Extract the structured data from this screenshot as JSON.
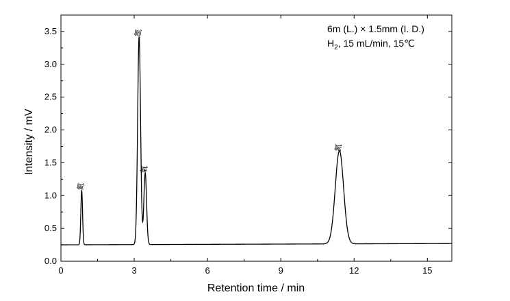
{
  "chart_data": {
    "type": "line",
    "xlabel": "Retention time / min",
    "ylabel": "Intensity / mV",
    "xlim": [
      0,
      16
    ],
    "ylim": [
      0,
      3.75
    ],
    "xticks": [
      0,
      3,
      6,
      9,
      12,
      15
    ],
    "xtick_labels": [
      "0",
      "3",
      "6",
      "9",
      "12",
      "15"
    ],
    "yticks": [
      0.0,
      0.5,
      1.0,
      1.5,
      2.0,
      2.5,
      3.0,
      3.5
    ],
    "ytick_labels": [
      "0.0",
      "0.5",
      "1.0",
      "1.5",
      "2.0",
      "2.5",
      "3.0",
      "3.5"
    ],
    "grid": false,
    "annotations": {
      "line1": "6m (L.) × 1.5mm (I. D.)",
      "line2_prefix": "H",
      "line2_sub": "2",
      "line2_suffix": ", 15 mL/min, 15℃"
    },
    "baseline": 0.25,
    "baseline_drift": 0.02,
    "peaks": [
      {
        "label": "氦",
        "x": 0.85,
        "y": 1.08,
        "width": 0.035
      },
      {
        "label": "氫",
        "x": 3.2,
        "y": 3.42,
        "width": 0.06
      },
      {
        "label": "氧",
        "x": 3.45,
        "y": 1.34,
        "width": 0.055
      },
      {
        "label": "氮",
        "x": 11.4,
        "y": 1.67,
        "width": 0.17
      }
    ]
  }
}
